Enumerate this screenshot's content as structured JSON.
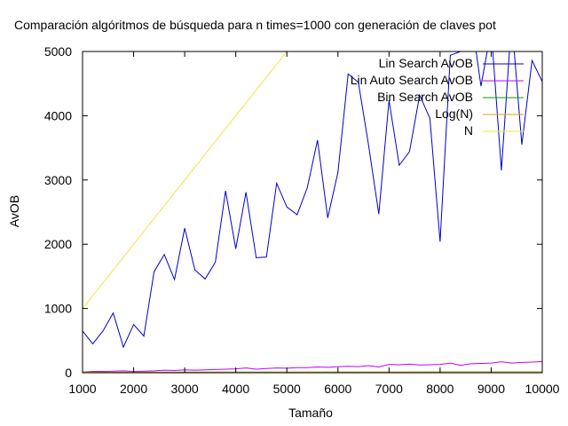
{
  "chart_data": {
    "type": "line",
    "title": "Comparación algóritmos de búsqueda para n times=1000 con generación de claves pot",
    "xlabel": "Tamaño",
    "ylabel": "AvOB",
    "xlim": [
      1000,
      10000
    ],
    "ylim": [
      0,
      5000
    ],
    "xticks": [
      "1000",
      "2000",
      "3000",
      "4000",
      "5000",
      "6000",
      "7000",
      "8000",
      "9000",
      "10000"
    ],
    "yticks": [
      "0",
      "1000",
      "2000",
      "3000",
      "4000",
      "5000"
    ],
    "grid": false,
    "legend": "top-right",
    "series": [
      {
        "name": "Lin Search AvOB",
        "color": "#0000d0",
        "x": [
          1000,
          1200,
          1400,
          1600,
          1800,
          2000,
          2200,
          2400,
          2600,
          2800,
          3000,
          3200,
          3400,
          3600,
          3800,
          4000,
          4200,
          4400,
          4600,
          4800,
          5000,
          5200,
          5400,
          5600,
          5800,
          6000,
          6200,
          6400,
          6600,
          6800,
          7000,
          7200,
          7400,
          7600,
          7800,
          8000,
          8200,
          8400,
          8600,
          8800,
          9000,
          9200,
          9400,
          9600,
          9800,
          10000
        ],
        "y": [
          650,
          450,
          650,
          930,
          400,
          750,
          570,
          1570,
          1840,
          1450,
          2250,
          1600,
          1460,
          1720,
          2830,
          1930,
          2810,
          1790,
          1800,
          2950,
          2580,
          2460,
          2880,
          3620,
          2410,
          3120,
          4650,
          4520,
          3540,
          2470,
          4240,
          3230,
          3440,
          4320,
          3960,
          2040,
          4940,
          5000,
          5600,
          4460,
          5350,
          3150,
          5500,
          3550,
          4860,
          4530
        ]
      },
      {
        "name": "Lin Auto Search AvOB",
        "color": "#c000ff",
        "x": [
          1000,
          1200,
          1400,
          1600,
          1800,
          2000,
          2200,
          2400,
          2600,
          2800,
          3000,
          3200,
          3400,
          3600,
          3800,
          4000,
          4200,
          4400,
          4600,
          4800,
          5000,
          5200,
          5400,
          5600,
          5800,
          6000,
          6200,
          6400,
          6600,
          6800,
          7000,
          7200,
          7400,
          7600,
          7800,
          8000,
          8200,
          8400,
          8600,
          8800,
          9000,
          9200,
          9400,
          9600,
          9800,
          10000
        ],
        "y": [
          10,
          20,
          20,
          25,
          30,
          20,
          25,
          30,
          40,
          35,
          45,
          40,
          45,
          50,
          55,
          60,
          75,
          55,
          65,
          75,
          70,
          80,
          80,
          90,
          85,
          95,
          100,
          95,
          110,
          90,
          130,
          125,
          135,
          120,
          125,
          130,
          150,
          115,
          140,
          145,
          150,
          170,
          150,
          160,
          165,
          175
        ]
      },
      {
        "name": "Bin Search AvOB",
        "color": "#00a000",
        "x": [
          1000,
          10000
        ],
        "y": [
          9,
          12
        ]
      },
      {
        "name": "Log(N)",
        "color": "#e69f00",
        "x": [
          1000,
          10000
        ],
        "y": [
          7,
          9.2
        ]
      },
      {
        "name": "N",
        "color": "#f0e442",
        "x": [
          1000,
          10000
        ],
        "y": [
          1000,
          10000
        ]
      }
    ]
  }
}
